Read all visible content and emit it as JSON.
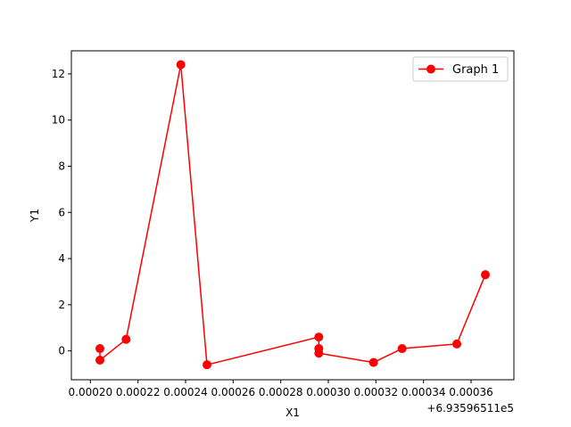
{
  "chart_data": {
    "type": "line",
    "xlabel": "X1",
    "ylabel": "Y1",
    "x_offset_label": "+6.93596511e5",
    "xlim": [
      0.000192,
      0.000378
    ],
    "ylim": [
      -1.25,
      13.0
    ],
    "x_ticks": [
      0.0002,
      0.00022,
      0.00024,
      0.00026,
      0.00028,
      0.0003,
      0.00032,
      0.00034,
      0.00036
    ],
    "x_tick_labels": [
      "0.00020",
      "0.00022",
      "0.00024",
      "0.00026",
      "0.00028",
      "0.00030",
      "0.00032",
      "0.00034",
      "0.00036"
    ],
    "y_ticks": [
      0,
      2,
      4,
      6,
      8,
      10,
      12
    ],
    "y_tick_labels": [
      "0",
      "2",
      "4",
      "6",
      "8",
      "10",
      "12"
    ],
    "legend_position": "top-right",
    "series": [
      {
        "name": "Graph 1",
        "color": "#ff0000",
        "marker": "circle",
        "points": [
          {
            "x": 0.000204,
            "y": 0.1
          },
          {
            "x": 0.000204,
            "y": -0.4
          },
          {
            "x": 0.000215,
            "y": 0.5
          },
          {
            "x": 0.000238,
            "y": 12.4
          },
          {
            "x": 0.000249,
            "y": -0.6
          },
          {
            "x": 0.000296,
            "y": 0.6
          },
          {
            "x": 0.000296,
            "y": 0.1
          },
          {
            "x": 0.000296,
            "y": -0.1
          },
          {
            "x": 0.000319,
            "y": -0.5
          },
          {
            "x": 0.000331,
            "y": 0.1
          },
          {
            "x": 0.000354,
            "y": 0.3
          },
          {
            "x": 0.000366,
            "y": 3.3
          }
        ]
      }
    ]
  }
}
